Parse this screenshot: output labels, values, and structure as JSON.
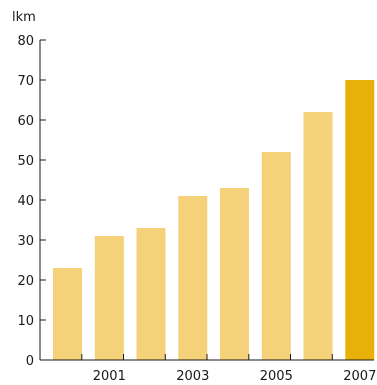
{
  "chart_data": {
    "type": "bar",
    "ylabel": "lkm",
    "ylim": [
      0,
      80
    ],
    "yticks": [
      0,
      10,
      20,
      30,
      40,
      50,
      60,
      70,
      80
    ],
    "categories": [
      "2000",
      "2001",
      "2002",
      "2003",
      "2004",
      "2005",
      "2006",
      "2007"
    ],
    "x_tick_labels": [
      "",
      "2001",
      "",
      "2003",
      "",
      "2005",
      "",
      "2007"
    ],
    "values": [
      23,
      31,
      33,
      41,
      43,
      52,
      62,
      70
    ],
    "colors": {
      "bar": "#f5d27a",
      "highlight": "#e8b10a",
      "axis": "#1a1a1a"
    },
    "highlight_index": 7,
    "grid": false
  }
}
